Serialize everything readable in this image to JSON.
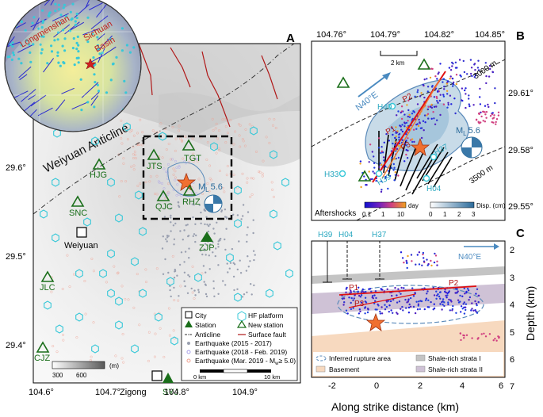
{
  "panel_labels": {
    "a": "A",
    "b": "B",
    "c": "C"
  },
  "inset_labels": {
    "longmenshan": "Longmenshan",
    "sichuan": "Sichuan",
    "basin": "Basin"
  },
  "panel_a": {
    "anticline_label": "Weiyuan Anticline",
    "x_ticks": [
      "104.6°",
      "104.7°",
      "104.8°",
      "104.9°"
    ],
    "y_ticks": [
      "29.6°",
      "29.5°",
      "29.4°"
    ],
    "stations": [
      "JTS",
      "TGT",
      "HJG",
      "QJC",
      "RHZ",
      "SNC",
      "ZJP",
      "JLC",
      "CJZ",
      "SYJ"
    ],
    "city_weiyuan": "Weiyuan",
    "city_zigong": "Zigong",
    "magnitude": "M",
    "magnitude_sub": "L",
    "magnitude_value": "5.6",
    "elev_unit": "(m)",
    "elev_ticks": [
      "300",
      "600"
    ],
    "scale_ticks": [
      "0 km",
      "10 km"
    ],
    "legend": {
      "city": "City",
      "station": "Station",
      "anticline": "Anticline",
      "hf_platform": "HF platform",
      "new_station": "New station",
      "surface_fault": "Surface fault",
      "eq1": "Earthquake (2015 - 2017)",
      "eq2": "Earthquake (2018 - Feb. 2019)",
      "eq3": "Earthquake (Mar. 2019 - M",
      "eq3_sub": "w",
      "eq3_tail": " 5.0)"
    },
    "colors": {
      "station": "#1a6e1a",
      "hf": "#38c8d8",
      "fault": "#b01818",
      "eq1": "#9aa0b0",
      "eq2": "#a8a0e8",
      "eq3": "#f0a090"
    }
  },
  "panel_b": {
    "x_ticks": [
      "104.76°",
      "104.79°",
      "104.82°",
      "104.85°"
    ],
    "y_ticks": [
      "29.61°",
      "29.58°",
      "29.55°"
    ],
    "scale": "2 km",
    "direction": "N40°E",
    "contours": [
      "3000 m",
      "3500 m"
    ],
    "stations": [
      "H40",
      "H37",
      "H33",
      "H39",
      "H04"
    ],
    "patches": [
      "P1",
      "P2",
      "P3"
    ],
    "magnitude": "M",
    "magnitude_sub": "L",
    "magnitude_value": "5.6",
    "aftershocks": "Aftershocks",
    "day_ticks": [
      "0.1",
      "1",
      "10"
    ],
    "day_unit": "day",
    "disp_ticks": [
      "0",
      "1",
      "2",
      "3"
    ],
    "disp_unit": "Disp. (cm)"
  },
  "panel_c": {
    "wells": [
      "H39",
      "H04",
      "H37"
    ],
    "direction": "N40°E",
    "x_ticks": [
      "-2",
      "0",
      "2",
      "4",
      "6"
    ],
    "y_ticks": [
      "2",
      "3",
      "4",
      "5",
      "6",
      "7"
    ],
    "ylabel": "Depth (km)",
    "xlabel": "Along strike distance (km)",
    "patches": [
      "P1",
      "P2",
      "P3"
    ],
    "legend": {
      "rupture": "Inferred rupture area",
      "basement": "Basement",
      "shale1": "Shale-rich strata I",
      "shale2": "Shale-rich strata II"
    }
  }
}
